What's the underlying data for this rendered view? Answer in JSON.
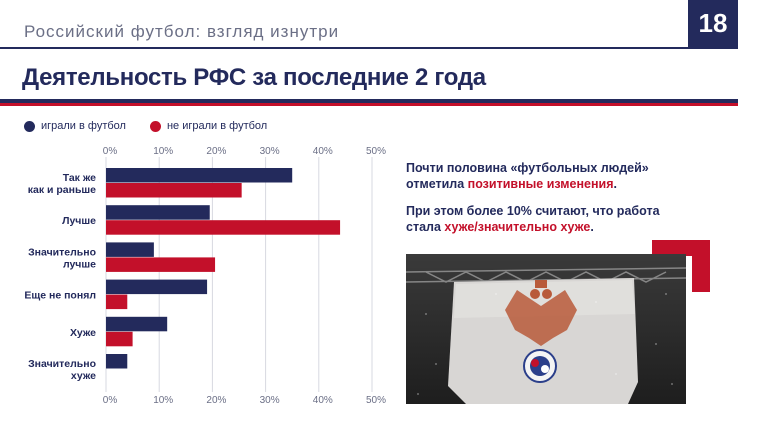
{
  "header": {
    "series_title": "Российский футбол: взгляд изнутри",
    "page_number": "18",
    "title": "Деятельность РФС за последние 2 года"
  },
  "legend": {
    "played": "играли в футбол",
    "not_played": "не играли в футбол"
  },
  "colors": {
    "navy": "#232a5c",
    "red": "#c3102a",
    "grid": "#d7d9e0",
    "text_gray": "#6b6f86"
  },
  "chart_data": {
    "type": "bar",
    "orientation": "horizontal",
    "categories": [
      [
        "Так же",
        "как и раньше"
      ],
      [
        "Лучше"
      ],
      [
        "Значительно",
        "лучше"
      ],
      [
        "Еще не понял"
      ],
      [
        "Хуже"
      ],
      [
        "Значительно",
        "хуже"
      ]
    ],
    "series": [
      {
        "name": "играли в футбол",
        "color": "#232a5c",
        "values": [
          35,
          19.5,
          9,
          19,
          11.5,
          4
        ]
      },
      {
        "name": "не играли в футбол",
        "color": "#c3102a",
        "values": [
          25.5,
          44,
          20.5,
          4,
          5,
          0
        ]
      }
    ],
    "xlim": [
      0,
      50
    ],
    "ticks": [
      "0%",
      "10%",
      "20%",
      "30%",
      "40%",
      "50%"
    ],
    "grid": true
  },
  "notes": {
    "p1_a": "Почти половина «футбольных людей»",
    "p1_b": "отметила ",
    "p1_hl": "позитивные изменения",
    "p1_end": ".",
    "p2_a": "При этом более 10% считают, что работа",
    "p2_b": "стала ",
    "p2_hl": "хуже/значительно хуже",
    "p2_end": "."
  },
  "photo": {
    "icon": "rfs-flag-photo"
  }
}
